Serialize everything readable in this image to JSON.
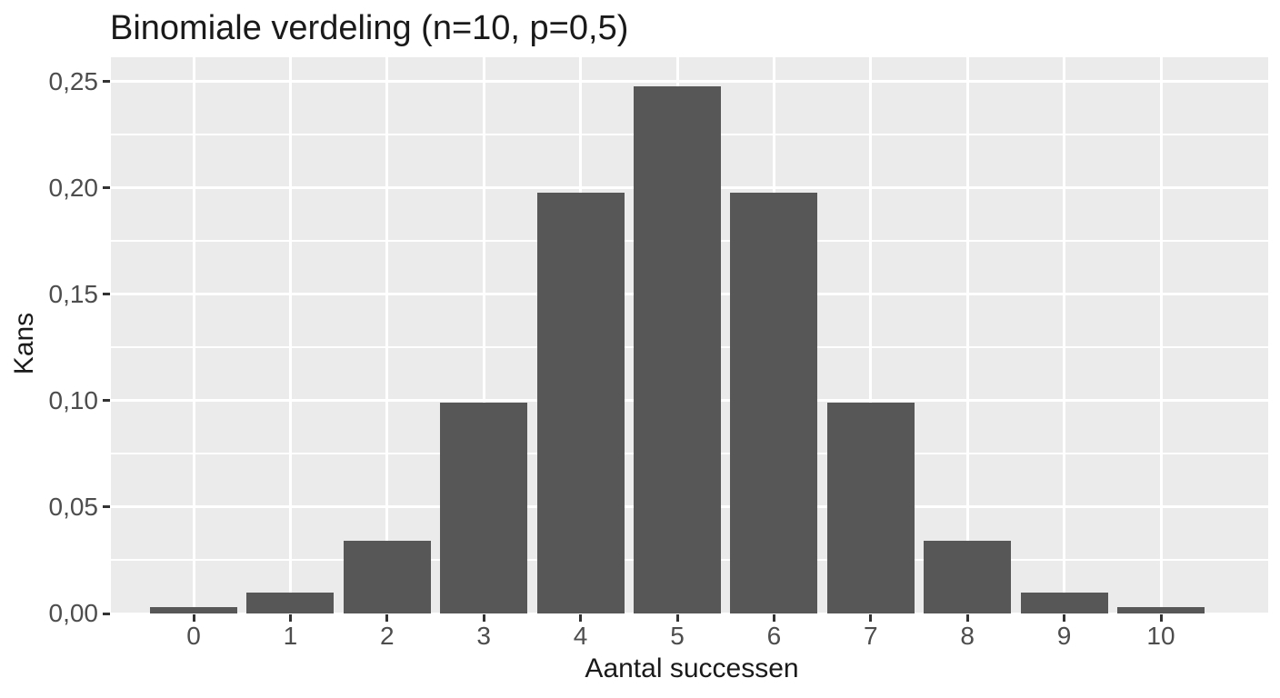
{
  "chart_data": {
    "type": "bar",
    "title": "Binomiale verdeling (n=10, p=0,5)",
    "xlabel": "Aantal successen",
    "ylabel": "Kans",
    "categories": [
      "0",
      "1",
      "2",
      "3",
      "4",
      "5",
      "6",
      "7",
      "8",
      "9",
      "10"
    ],
    "values": [
      0.003,
      0.01,
      0.034,
      0.099,
      0.198,
      0.248,
      0.198,
      0.099,
      0.034,
      0.01,
      0.003
    ],
    "y_ticks": [
      {
        "value": 0.0,
        "label": "0,00"
      },
      {
        "value": 0.05,
        "label": "0,05"
      },
      {
        "value": 0.1,
        "label": "0,10"
      },
      {
        "value": 0.15,
        "label": "0,15"
      },
      {
        "value": 0.2,
        "label": "0,20"
      },
      {
        "value": 0.25,
        "label": "0,25"
      }
    ],
    "ylim": [
      0,
      0.2615
    ],
    "grid": "white major+minor horizontal lines, white major vertical lines at category centers",
    "legend": "none",
    "colors": {
      "bar_fill": "#575757",
      "panel_bg": "#ebebeb",
      "gridline": "#ffffff",
      "tick_label": "#4d4d4d",
      "tick_mark": "#333333",
      "title_text": "#1a1a1a",
      "axis_title_text": "#1a1a1a",
      "page_bg": "#ffffff"
    }
  }
}
